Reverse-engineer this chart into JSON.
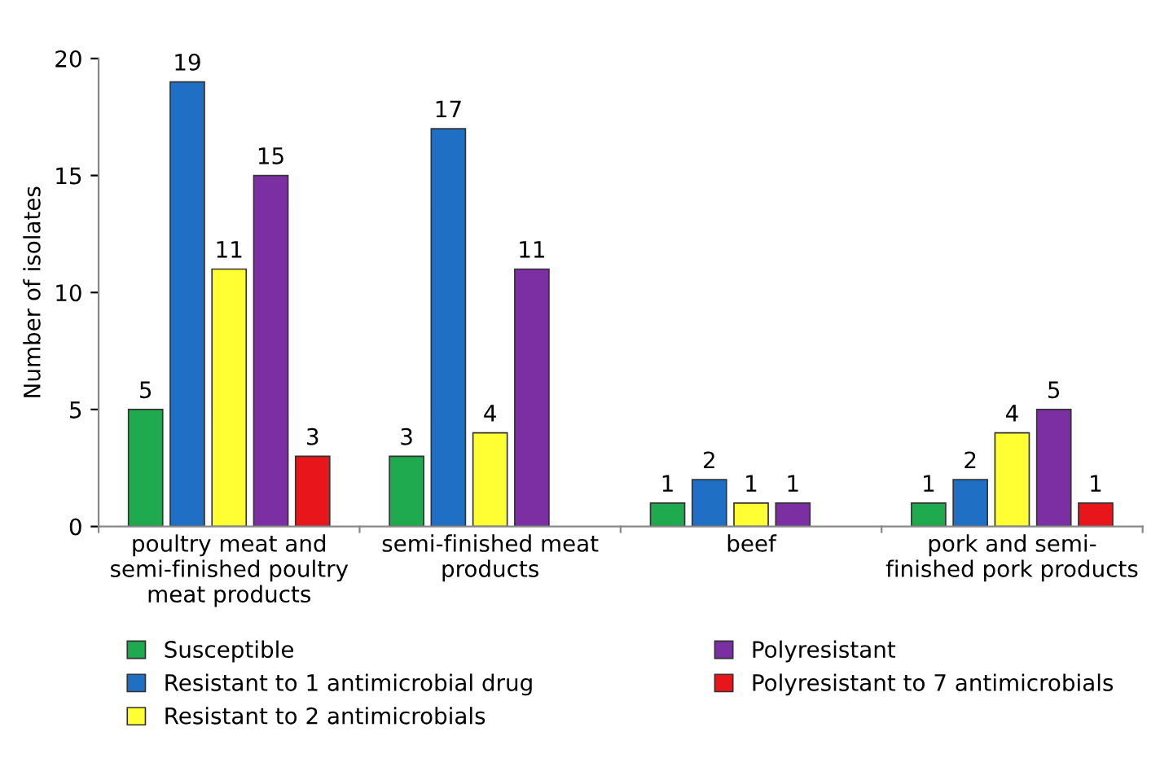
{
  "chart_data": {
    "type": "bar",
    "ylabel": "Number of isolates",
    "categories": [
      "poultry meat and\nsemi-finished poultry\nmeat products",
      "semi-finished meat\nproducts",
      "beef",
      "pork and semi-\nfinished pork products"
    ],
    "series": [
      {
        "name": "Susceptible",
        "color": "#1faa4f",
        "values": [
          5,
          3,
          1,
          1
        ]
      },
      {
        "name": "Resistant to 1 antimicrobial drug",
        "color": "#1f6fc4",
        "values": [
          19,
          17,
          2,
          2
        ]
      },
      {
        "name": "Resistant to 2 antimicrobials",
        "color": "#ffff33",
        "values": [
          11,
          4,
          1,
          4
        ]
      },
      {
        "name": "Polyresistant",
        "color": "#7b2fa3",
        "values": [
          15,
          11,
          1,
          5
        ]
      },
      {
        "name": "Polyresistant to 7 antimicrobials",
        "color": "#e8161b",
        "values": [
          3,
          null,
          null,
          1
        ]
      }
    ],
    "ylim": [
      0,
      20
    ],
    "yticks": [
      0,
      5,
      10,
      15,
      20
    ],
    "data_labels": true,
    "legend": "bottom",
    "grid": false
  }
}
